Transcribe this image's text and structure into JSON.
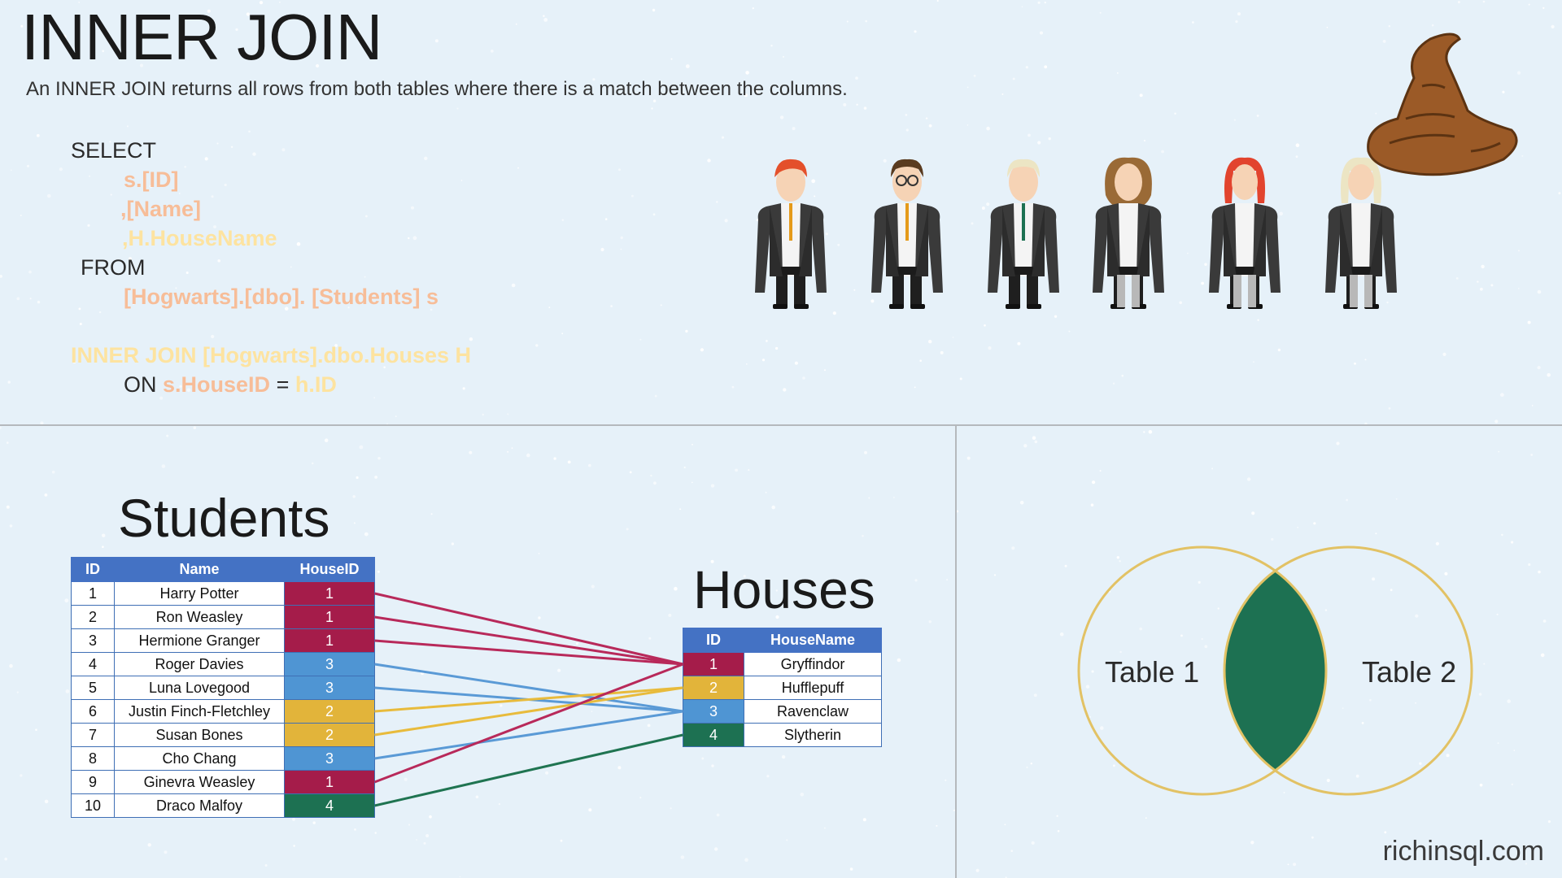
{
  "title": "INNER JOIN",
  "subtitle": "An INNER JOIN returns all rows from both tables where there is a match between the columns.",
  "sql": {
    "select": "SELECT",
    "col1": "s.[ID]",
    "col2": ",[Name]",
    "col3": ",H.HouseName",
    "from": "FROM",
    "table": "[Hogwarts].[dbo]. [Students] s",
    "join": "INNER JOIN [Hogwarts].dbo.Houses H",
    "on": "ON",
    "left_key": "s.HouseID",
    "equals": "=",
    "right_key": "h.ID"
  },
  "students": {
    "title": "Students",
    "headers": [
      "ID",
      "Name",
      "HouseID"
    ],
    "rows": [
      {
        "id": "1",
        "name": "Harry Potter",
        "house_id": "1"
      },
      {
        "id": "2",
        "name": "Ron Weasley",
        "house_id": "1"
      },
      {
        "id": "3",
        "name": "Hermione Granger",
        "house_id": "1"
      },
      {
        "id": "4",
        "name": "Roger Davies",
        "house_id": "3"
      },
      {
        "id": "5",
        "name": "Luna Lovegood",
        "house_id": "3"
      },
      {
        "id": "6",
        "name": "Justin Finch-Fletchley",
        "house_id": "2"
      },
      {
        "id": "7",
        "name": "Susan Bones",
        "house_id": "2"
      },
      {
        "id": "8",
        "name": "Cho Chang",
        "house_id": "3"
      },
      {
        "id": "9",
        "name": "Ginevra Weasley",
        "house_id": "1"
      },
      {
        "id": "10",
        "name": "Draco Malfoy",
        "house_id": "4"
      }
    ]
  },
  "houses": {
    "title": "Houses",
    "headers": [
      "ID",
      "HouseName"
    ],
    "rows": [
      {
        "id": "1",
        "name": "Gryffindor"
      },
      {
        "id": "2",
        "name": "Hufflepuff"
      },
      {
        "id": "3",
        "name": "Ravenclaw"
      },
      {
        "id": "4",
        "name": "Slytherin"
      }
    ]
  },
  "house_colors": {
    "1": "#a51c4a",
    "2": "#e2b43a",
    "3": "#4f95d3",
    "4": "#1d7152"
  },
  "line_colors": {
    "1": "#b8295a",
    "2": "#e8bb3c",
    "3": "#5a9ad6",
    "4": "#1f7451"
  },
  "venn": {
    "left_label": "Table 1",
    "right_label": "Table 2",
    "ring_color": "#e2c265",
    "overlap_color": "#1d7152"
  },
  "credit": "richinsql.com"
}
